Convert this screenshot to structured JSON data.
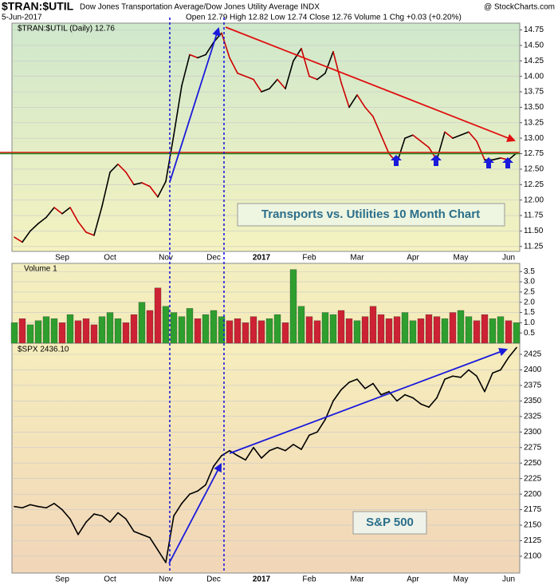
{
  "header": {
    "symbol": "$TRAN:$UTIL",
    "description": "Dow Jones Transportation Average/Dow Jones Utility Average INDX",
    "credit": "@ StockCharts.com",
    "date": "5-Jun-2017",
    "quote": "Open 12.79 High 12.82 Low 12.74 Close 12.76 Volume 1 Chg +0.03 (+0.20%)"
  },
  "chart_data": [
    {
      "type": "line",
      "name": "$TRAN:$UTIL (Daily) 12.76",
      "annotation": "Transports vs. Utilities 10 Month Chart",
      "up_color": "#000000",
      "down_color": "#cc0000",
      "categories": [
        null,
        null,
        null,
        null,
        null,
        null,
        "Sep",
        null,
        null,
        null,
        null,
        null,
        "Oct",
        null,
        null,
        null,
        null,
        null,
        null,
        "Nov",
        null,
        null,
        null,
        null,
        null,
        "Dec",
        null,
        null,
        null,
        null,
        null,
        "2017",
        null,
        null,
        null,
        null,
        null,
        "Feb",
        null,
        null,
        null,
        null,
        null,
        "Mar",
        null,
        null,
        null,
        null,
        null,
        null,
        "Apr",
        null,
        null,
        null,
        null,
        null,
        "May",
        null,
        null,
        null,
        null,
        null,
        "Jun",
        null
      ],
      "values": [
        11.4,
        11.32,
        11.5,
        11.62,
        11.72,
        11.88,
        11.78,
        11.88,
        11.65,
        11.48,
        11.43,
        11.9,
        12.45,
        12.58,
        12.45,
        12.25,
        12.28,
        12.22,
        12.05,
        12.3,
        13.05,
        13.85,
        14.35,
        14.3,
        14.35,
        14.55,
        14.7,
        14.3,
        14.05,
        14.0,
        13.95,
        13.75,
        13.8,
        13.95,
        13.8,
        14.25,
        14.45,
        14.0,
        13.95,
        14.05,
        14.4,
        13.9,
        13.5,
        13.7,
        13.5,
        13.35,
        13.05,
        12.75,
        12.6,
        13.0,
        13.05,
        12.95,
        12.85,
        12.65,
        13.1,
        13.0,
        13.05,
        13.1,
        12.95,
        12.65,
        12.65,
        12.68,
        12.65,
        12.76
      ],
      "ylim": [
        11.17,
        14.86
      ],
      "yticks": [
        11.25,
        {
          "value": 11.5,
          "label": "11.50"
        },
        11.75,
        {
          "value": 12,
          "label": "12.00"
        },
        12.25,
        {
          "value": 12.5,
          "label": "12.50"
        },
        12.75,
        {
          "value": 13,
          "label": "13.00"
        },
        13.25,
        {
          "value": 13.5,
          "label": "13.50"
        },
        13.75,
        {
          "value": 14,
          "label": "14.00"
        },
        14.25,
        {
          "value": 14.5,
          "label": "14.50"
        },
        14.75
      ],
      "grid": true
    },
    {
      "type": "bar",
      "name": "Volume 1",
      "up_color": "#2e9e2e",
      "down_color": "#cc2233",
      "values": [
        1.0,
        1.2,
        0.9,
        1.1,
        1.3,
        1.2,
        1.0,
        1.4,
        1.1,
        1.2,
        0.9,
        1.3,
        1.5,
        1.2,
        1.0,
        1.4,
        2.0,
        1.6,
        2.7,
        1.8,
        1.5,
        1.3,
        1.7,
        1.2,
        1.4,
        1.6,
        1.3,
        1.1,
        1.2,
        1.0,
        1.3,
        1.1,
        1.2,
        1.4,
        1.0,
        3.6,
        1.8,
        1.3,
        1.1,
        1.5,
        1.4,
        1.6,
        1.2,
        1.1,
        1.3,
        1.8,
        1.4,
        1.2,
        1.3,
        1.5,
        1.1,
        1.2,
        1.4,
        1.3,
        1.2,
        1.5,
        1.6,
        1.3,
        1.1,
        1.4,
        1.2,
        1.3,
        1.1,
        1.0
      ],
      "ylim": [
        0,
        3.9
      ],
      "yticks": [
        0.5,
        {
          "value": 1,
          "label": "1.0"
        },
        1.5,
        {
          "value": 2,
          "label": "2.0"
        },
        2.5,
        {
          "value": 3,
          "label": "3.0"
        },
        3.5
      ],
      "grid": true
    },
    {
      "type": "line",
      "name": "$SPX 2436.10",
      "annotation": "S&P 500",
      "up_color": "#000000",
      "down_color": "#000000",
      "categories": [
        null,
        null,
        null,
        null,
        null,
        null,
        "Sep",
        null,
        null,
        null,
        null,
        null,
        "Oct",
        null,
        null,
        null,
        null,
        null,
        null,
        "Nov",
        null,
        null,
        null,
        null,
        null,
        "Dec",
        null,
        null,
        null,
        null,
        null,
        "2017",
        null,
        null,
        null,
        null,
        null,
        "Feb",
        null,
        null,
        null,
        null,
        null,
        "Mar",
        null,
        null,
        null,
        null,
        null,
        null,
        "Apr",
        null,
        null,
        null,
        null,
        null,
        "May",
        null,
        null,
        null,
        null,
        null,
        "Jun",
        null
      ],
      "values": [
        2180,
        2178,
        2183,
        2180,
        2178,
        2185,
        2175,
        2160,
        2135,
        2155,
        2168,
        2165,
        2155,
        2170,
        2160,
        2140,
        2135,
        2130,
        2110,
        2090,
        2165,
        2185,
        2200,
        2205,
        2215,
        2245,
        2262,
        2270,
        2262,
        2255,
        2275,
        2258,
        2270,
        2275,
        2270,
        2280,
        2272,
        2295,
        2300,
        2320,
        2350,
        2368,
        2380,
        2385,
        2370,
        2378,
        2360,
        2365,
        2350,
        2360,
        2355,
        2345,
        2340,
        2355,
        2385,
        2390,
        2388,
        2400,
        2390,
        2365,
        2395,
        2400,
        2420,
        2436
      ],
      "ylim": [
        2073,
        2443
      ],
      "yticks": [
        2100,
        2125,
        2150,
        2175,
        2200,
        2225,
        2250,
        2275,
        2300,
        2325,
        2350,
        2375,
        2400,
        2425
      ],
      "grid": true
    }
  ]
}
